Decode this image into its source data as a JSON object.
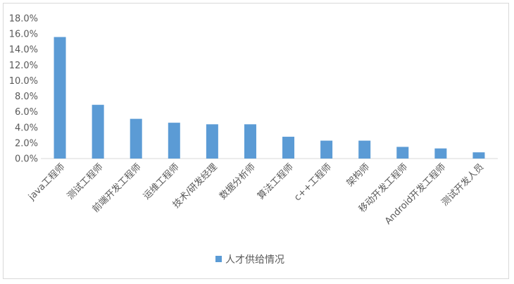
{
  "chart_data": {
    "type": "bar",
    "categories": [
      "java工程师",
      "测试工程师",
      "前端开发工程师",
      "运维工程师",
      "技术/研发经理",
      "数据分析师",
      "算法工程师",
      "c++工程师",
      "架构师",
      "移动开发工程师",
      "Android开发工程师",
      "测试开发人员"
    ],
    "series": [
      {
        "name": "人才供给情况",
        "color": "#5b9bd5",
        "values": [
          15.6,
          6.9,
          5.1,
          4.6,
          4.4,
          4.4,
          2.8,
          2.3,
          2.3,
          1.5,
          1.3,
          0.8
        ]
      }
    ],
    "ylim": [
      0,
      18
    ],
    "yticks": [
      0,
      2,
      4,
      6,
      8,
      10,
      12,
      14,
      16,
      18
    ],
    "ytick_labels": [
      "0.0%",
      "2.0%",
      "4.0%",
      "6.0%",
      "8.0%",
      "10.0%",
      "12.0%",
      "14.0%",
      "16.0%",
      "18.0%"
    ],
    "grid": false,
    "legend_position": "bottom"
  }
}
